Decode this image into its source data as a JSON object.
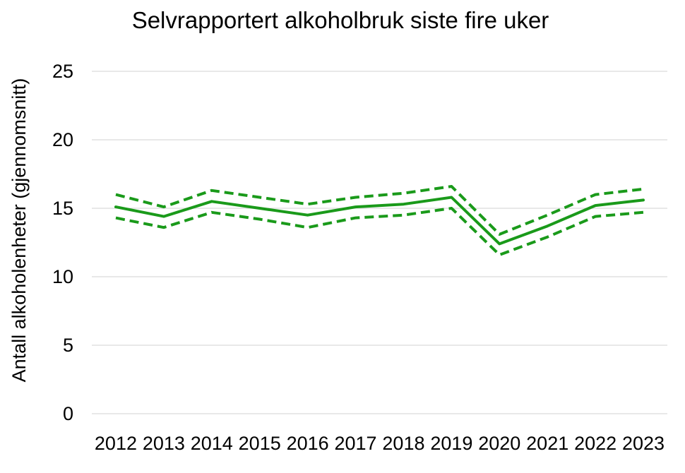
{
  "chart_data": {
    "type": "line",
    "title": "Selvrapportert alkoholbruk siste fire uker",
    "xlabel": "",
    "ylabel": "Antall alkoholenheter (gjennomsnitt)",
    "categories": [
      "2012",
      "2013",
      "2014",
      "2015",
      "2016",
      "2017",
      "2018",
      "2019",
      "2020",
      "2021",
      "2022",
      "2023"
    ],
    "ylim": [
      0,
      25
    ],
    "yticks": [
      "0",
      "5",
      "10",
      "15",
      "20",
      "25"
    ],
    "grid": true,
    "legend": "none",
    "series": [
      {
        "values": [
          15.1,
          14.4,
          15.5,
          15.0,
          14.5,
          15.1,
          15.3,
          15.8,
          12.4,
          13.7,
          15.2,
          15.6
        ],
        "style": "solid",
        "color": "#1a9a1a"
      },
      {
        "values": [
          16.0,
          15.1,
          16.3,
          15.8,
          15.3,
          15.8,
          16.1,
          16.6,
          13.1,
          14.5,
          16.0,
          16.4
        ],
        "style": "dashed",
        "color": "#1a9a1a"
      },
      {
        "values": [
          14.3,
          13.6,
          14.7,
          14.2,
          13.6,
          14.3,
          14.5,
          15.0,
          11.6,
          12.9,
          14.4,
          14.7
        ],
        "style": "dashed",
        "color": "#1a9a1a"
      }
    ]
  }
}
